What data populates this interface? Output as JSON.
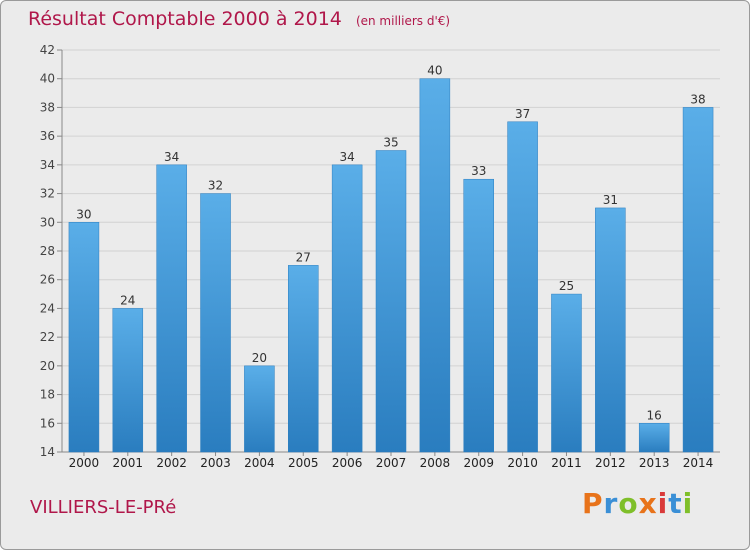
{
  "header": {
    "title": "Résultat Comptable 2000 à 2014",
    "subtitle": "(en milliers d'€)"
  },
  "footer": {
    "town": "VILLIERS-LE-PRé",
    "logo": "Proxiti"
  },
  "colors": {
    "accent": "#b0174a",
    "bar_top": "#5aaee8",
    "bar_bottom": "#2a7dbf",
    "background": "#ebebeb",
    "logo": [
      "#e8731a",
      "#3a8fd6",
      "#7fbf2a",
      "#e8731a",
      "#d93a3a",
      "#3a8fd6",
      "#7fbf2a"
    ]
  },
  "chart_data": {
    "type": "bar",
    "categories": [
      "2000",
      "2001",
      "2002",
      "2003",
      "2004",
      "2005",
      "2006",
      "2007",
      "2008",
      "2009",
      "2010",
      "2011",
      "2012",
      "2013",
      "2014"
    ],
    "values": [
      30,
      24,
      34,
      32,
      20,
      27,
      34,
      35,
      40,
      33,
      37,
      25,
      31,
      16,
      38
    ],
    "title": "Résultat Comptable 2000 à 2014",
    "subtitle": "(en milliers d'€)",
    "ylim": [
      14,
      42
    ],
    "yticks": [
      14,
      16,
      18,
      20,
      22,
      24,
      26,
      28,
      30,
      32,
      34,
      36,
      38,
      40,
      42
    ],
    "grid": true,
    "data_labels": true
  }
}
